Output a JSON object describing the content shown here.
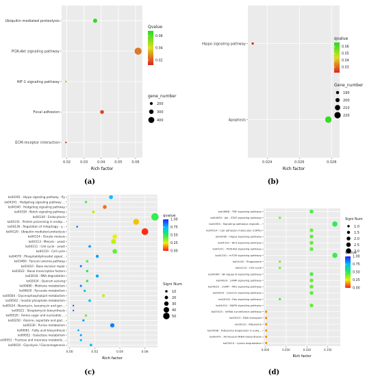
{
  "chart_data": [
    {
      "type": "scatter",
      "panel_label": "(a)",
      "categories": [
        "ECM-receptor interaction",
        "Focal adhesion",
        "HIF-1 signaling pathway",
        "PI3K-Akt signaling pathway",
        "Ubiquitin mediated proteolysis"
      ],
      "x": [
        0.0195,
        0.0405,
        0.0195,
        0.0615,
        0.0365
      ],
      "qvalue": [
        0.013,
        0.017,
        0.05,
        0.025,
        0.066
      ],
      "gene_number": [
        120,
        260,
        130,
        470,
        280
      ],
      "xlim": [
        0.017,
        0.064
      ],
      "xticks": [
        0.02,
        0.03,
        0.04,
        0.05,
        0.06
      ],
      "xtick_labels": [
        "0.02",
        "0.03",
        "0.04",
        "0.05",
        "0.06"
      ],
      "xlabel": "Rich factor",
      "color_legend": {
        "title": "Qvalue",
        "ticks": [
          0.06,
          0.04,
          0.02
        ],
        "tick_labels": [
          "0.06",
          "0.04",
          "0.02"
        ],
        "range": [
          0.012,
          0.068
        ],
        "high_color": "#22dd22",
        "low_color": "#dd2222"
      },
      "size_legend": {
        "title": "gene_number",
        "values": [
          200,
          300,
          400
        ],
        "labels": [
          "200",
          "300",
          "400"
        ],
        "range": [
          100,
          500
        ]
      },
      "grid": true
    },
    {
      "type": "scatter",
      "panel_label": "(b)",
      "categories": [
        "Apoptosis",
        "Hippo signaling pathway"
      ],
      "x": [
        0.0278,
        0.0231
      ],
      "qvalue": [
        0.064,
        0.022
      ],
      "gene_number": [
        221,
        182
      ],
      "xlim": [
        0.0228,
        0.0285
      ],
      "xticks": [
        0.024,
        0.026,
        0.028
      ],
      "xtick_labels": [
        "0.024",
        "0.026",
        "0.028"
      ],
      "xlabel": "Rich factor",
      "color_legend": {
        "title": "qvalue",
        "ticks": [
          0.06,
          0.05,
          0.04,
          0.03
        ],
        "tick_labels": [
          "0.06",
          "0.05",
          "0.04",
          "0.03"
        ],
        "range": [
          0.022,
          0.066
        ],
        "high_color": "#22dd22",
        "low_color": "#dd2222"
      },
      "size_legend": {
        "title": "Gene_number",
        "values": [
          190,
          200,
          210,
          220
        ],
        "labels": [
          "190",
          "200",
          "210",
          "220"
        ],
        "range": [
          180,
          225
        ]
      },
      "grid": true
    },
    {
      "type": "scatter",
      "panel_label": "(c)",
      "categories": [
        "ko00010 : Glycolysis / Gluconeogenesis",
        "ko00051 : Fructose and mannose metabolis...",
        "ko00052 : Galactose metabolism",
        "ko00061 : Fatty acid biosynthesis",
        "ko00230 : Purine metabolism",
        "ko00250 : Alanine, aspartate and glut...",
        "ko00520 : Amino sugar and nucleotide ...",
        "ko00521 : Streptomycin biosynthesis",
        "ko00524 : Neomycin, kanamycin and gen...",
        "ko00562 : Inositol phosphate metabolism",
        "ko00564 : Glycerophospholipid metabolism",
        "ko00620 : Pyruvate metabolism",
        "ko00680 : Methane metabolism",
        "ko02024 : Quorum sensing",
        "ko03018 : RNA degradation",
        "ko03022 : Basal transcription factors",
        "ko03410 : Base excision repair",
        "ko03460 : Fanconi anemia pathway",
        "ko04070 : Phosphatidylinositol signal...",
        "ko04110 : Cell cycle",
        "ko04111 : Cell cycle - yeast",
        "ko04113 : Meiosis - yeast",
        "ko04114 : Oocyte meiosis",
        "ko04120 : Ubiquitin mediated proteolysis",
        "ko04136 : Regulation of mitophagy - y...",
        "ko04141 : Protein processing in endop...",
        "ko04144 : Endocytosis",
        "ko04330 : Notch signaling pathway",
        "ko04340 : Hedgehog signaling pathway",
        "ko04341 : Hedgehog signaling pathway ...",
        "ko04391 : Hippo signaling pathway - fly"
      ],
      "x": [
        0.017,
        0.009,
        0.009,
        0.007,
        0.034,
        0.011,
        0.013,
        0.003,
        0.003,
        0.016,
        0.027,
        0.012,
        0.009,
        0.014,
        0.022,
        0.014,
        0.009,
        0.014,
        0.022,
        0.036,
        0.016,
        0.035,
        0.036,
        0.06,
        0.006,
        0.053,
        0.068,
        0.019,
        0.028,
        0.013,
        0.033
      ],
      "qvalue": [
        0.75,
        0.74,
        0.8,
        0.78,
        0.85,
        0.82,
        0.4,
        0.88,
        0.9,
        0.72,
        0.3,
        0.7,
        0.86,
        0.5,
        0.78,
        0.52,
        0.88,
        0.45,
        0.8,
        0.42,
        0.8,
        0.3,
        0.25,
        0.02,
        0.85,
        0.2,
        0.48,
        0.3,
        0.1,
        0.45,
        0.75
      ],
      "signi_num": [
        12,
        8,
        7,
        5,
        28,
        8,
        10,
        3,
        3,
        12,
        16,
        9,
        7,
        10,
        16,
        10,
        7,
        10,
        16,
        32,
        12,
        35,
        30,
        52,
        5,
        44,
        58,
        14,
        24,
        10,
        24
      ],
      "xlim": [
        -0.002,
        0.07
      ],
      "xticks": [
        0.0,
        0.02,
        0.04,
        0.06
      ],
      "xtick_labels": [
        "0.00",
        "0.02",
        "0.04",
        "0.06"
      ],
      "xlabel": "Rich factor",
      "color_legend": {
        "title": "qvalue",
        "ticks": [
          1.0,
          0.75,
          0.5,
          0.25,
          0.0
        ],
        "tick_labels": [
          "1.00",
          "0.75",
          "0.50",
          "0.25",
          "0.00"
        ],
        "range": [
          0,
          1
        ]
      },
      "size_legend": {
        "title": "Signi Num",
        "values": [
          10,
          20,
          30,
          40,
          50
        ],
        "labels": [
          "10",
          "20",
          "30",
          "40",
          "50"
        ],
        "range": [
          0,
          60
        ]
      },
      "grid": true
    },
    {
      "type": "scatter",
      "panel_label": "(d)",
      "categories": [
        "ko03010 : Lysine degradation",
        "ko00970 : Aminoacyl-tRNA biosynthesis",
        "ko03008 : Ribosome biogenesis in euka...",
        "ko03010 : Ribosome",
        "ko03013 : RNA transport",
        "ko03015 : mRNA surveillance pathway",
        "ko04010 : MAPK signaling pathway",
        "ko04016 : Ras signaling pathway",
        "ko04020 : Calcium signaling pathway",
        "ko04022 : cGMP - PKG signaling pathway",
        "ko04024 : cAMP signaling pathway",
        "ko04064 : NF-kappa B signaling pathway",
        "ko04110 : Cell cycle",
        "ko04145 : Phagosome",
        "ko04150 : mTOR signaling pathway",
        "ko04151 : PI3K-Akt signaling pathway",
        "ko04310 : Wnt signaling pathway",
        "ko04390 : Hippo signaling pathway",
        "ko04514 : Cell adhesion molecules (CAMs)",
        "ko04550 : Signaling pathways regulati...",
        "ko04630 : Jak - STAT signaling pathway",
        "ko04668 : TNF signaling pathway"
      ],
      "x": [
        0.002,
        0.002,
        0.002,
        0.002,
        0.002,
        0.002,
        0.111,
        0.035,
        0.111,
        0.111,
        0.111,
        0.111,
        0.035,
        0.035,
        0.167,
        0.111,
        0.111,
        0.111,
        0.111,
        0.167,
        0.035,
        0.111
      ],
      "qvalue": [
        0.15,
        0.14,
        0.15,
        0.14,
        0.13,
        0.14,
        0.42,
        0.45,
        0.43,
        0.42,
        0.42,
        0.45,
        0.4,
        0.38,
        0.47,
        0.42,
        0.42,
        0.43,
        0.41,
        0.49,
        0.4,
        0.45
      ],
      "signi_num": [
        1,
        1,
        1,
        1,
        1,
        1,
        2,
        1,
        2,
        2,
        2,
        2,
        1,
        1,
        3,
        2,
        2,
        2,
        2,
        3,
        1,
        2
      ],
      "xlim": [
        -0.004,
        0.18
      ],
      "xticks": [
        0.0,
        0.05,
        0.1,
        0.15
      ],
      "xtick_labels": [
        "0.000",
        "0.050",
        "0.100",
        "0.150"
      ],
      "xlabel": "Rich factor",
      "color_legend": {
        "title": "qvalue",
        "ticks": [
          1.0,
          0.75,
          0.5,
          0.25,
          0.0
        ],
        "tick_labels": [
          "1.00",
          "0.75",
          "0.50",
          "0.25",
          "0.00"
        ],
        "range": [
          0,
          1
        ]
      },
      "size_legend": {
        "title": "Signi Num",
        "values": [
          1.0,
          1.5,
          2.0,
          2.5,
          3.0
        ],
        "labels": [
          "1.0",
          "1.5",
          "2.0",
          "2.5",
          "3.0"
        ],
        "range": [
          0.8,
          3.2
        ]
      },
      "grid": true
    }
  ]
}
